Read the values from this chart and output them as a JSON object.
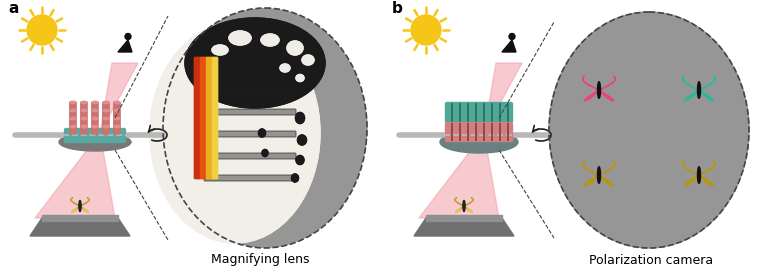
{
  "fig_width": 7.68,
  "fig_height": 2.7,
  "dpi": 100,
  "bg_color": "#ffffff",
  "label_a": "a",
  "label_b": "b",
  "label_fontsize": 11,
  "label_fontweight": "bold",
  "sun_color": "#F5C518",
  "red_beam_color": "#F0A0A8",
  "red_beam_alpha": 0.55,
  "gray_bg": "#969696",
  "circle_dashed_color": "#555555",
  "text_magnifying": "Magnifying lens",
  "text_polarization": "Polarization camera",
  "text_fontsize": 9,
  "pink_butterfly": "#E8457A",
  "teal_butterfly": "#2CB89A",
  "yellow_butterfly": "#B8960A",
  "metasurface_pink": "#D48080",
  "metasurface_teal": "#50A898",
  "rod_color": "#B0B0B0"
}
